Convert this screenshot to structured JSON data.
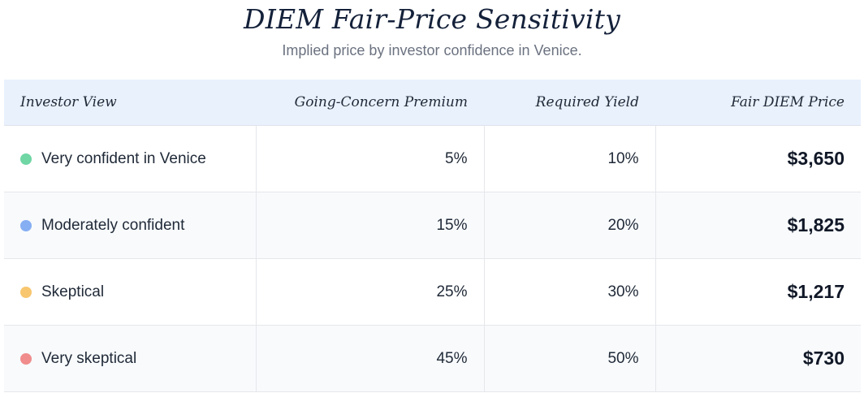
{
  "title": "DIEM Fair-Price Sensitivity",
  "subtitle": "Implied price by investor confidence in Venice.",
  "chart_data": {
    "type": "table",
    "columns": [
      "Investor View",
      "Going-Concern Premium",
      "Required Yield",
      "Fair DIEM Price"
    ],
    "rows": [
      {
        "view": "Very confident in Venice",
        "premium": "5%",
        "yield": "10%",
        "price": "$3,650",
        "color": "#6fd6a4"
      },
      {
        "view": "Moderately confident",
        "premium": "15%",
        "yield": "20%",
        "price": "$1,825",
        "color": "#86aef3"
      },
      {
        "view": "Skeptical",
        "premium": "25%",
        "yield": "30%",
        "price": "$1,217",
        "color": "#f8c66e"
      },
      {
        "view": "Very skeptical",
        "premium": "45%",
        "yield": "50%",
        "price": "$730",
        "color": "#f08c8c"
      }
    ]
  }
}
